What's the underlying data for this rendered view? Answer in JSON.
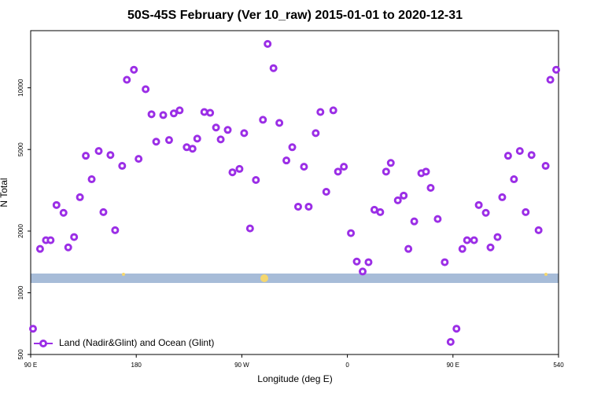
{
  "chart_data": {
    "type": "scatter",
    "log_y": true,
    "title": "50S-45S February (Ver 10_raw)   2015-01-01 to 2020-12-31",
    "xlabel": "Longitude (deg E)",
    "ylabel": "N Total",
    "xlim": [
      90,
      540
    ],
    "ylim": [
      500,
      19000
    ],
    "xticks": [
      {
        "value": 90,
        "label": "90 E"
      },
      180,
      {
        "value": 270,
        "label": "90 W"
      },
      {
        "value": 360,
        "label": "0"
      },
      {
        "value": 450,
        "label": "90 E"
      },
      540
    ],
    "yticks": [
      500,
      1000,
      2000,
      5000,
      10000
    ],
    "legend": "lower left",
    "series": [
      {
        "name": "Land (Nadir&Glint) and Ocean (Glint)",
        "color": "#9b2ee6",
        "x": [
          92,
          98,
          103,
          107,
          112,
          118,
          122,
          127,
          132,
          137,
          142,
          148,
          152,
          158,
          162,
          168,
          172,
          178,
          182,
          188,
          193,
          197,
          203,
          208,
          212,
          217,
          223,
          228,
          232,
          238,
          243,
          248,
          252,
          258,
          262,
          268,
          272,
          277,
          282,
          288,
          292,
          297,
          302,
          308,
          313,
          318,
          323,
          327,
          333,
          337,
          342,
          348,
          352,
          357,
          363,
          368,
          373,
          378,
          383,
          388,
          393,
          397,
          403,
          408,
          412,
          417,
          423,
          427,
          431,
          437,
          443,
          448,
          453,
          458,
          462,
          468,
          472,
          478,
          482,
          488,
          492,
          497,
          502,
          507,
          512,
          517,
          523,
          529,
          533,
          538
        ],
        "values": [
          668,
          1637,
          1805,
          1805,
          2680,
          2455,
          1665,
          1870,
          2925,
          4660,
          3580,
          4915,
          2475,
          4700,
          2020,
          4160,
          10940,
          12250,
          4500,
          9840,
          7430,
          5460,
          7360,
          5560,
          7500,
          7760,
          5130,
          5045,
          5650,
          7620,
          7550,
          6400,
          5600,
          6230,
          3870,
          4020,
          6010,
          2060,
          3550,
          6980,
          16370,
          12470,
          6740,
          4420,
          5130,
          2630,
          4120,
          2630,
          6010,
          7620,
          3110,
          7760,
          3900,
          4120,
          1955,
          1420,
          1270,
          1410,
          2540,
          2475,
          3900,
          4300,
          2825,
          2980,
          1637,
          2230,
          3830,
          3900,
          3250,
          2290,
          1410,
          576,
          668,
          1637,
          1805,
          1805,
          2680,
          2455,
          1665,
          1870,
          2925,
          4660,
          3580,
          4915,
          2475,
          4700,
          2020,
          4160,
          10940,
          12250
        ]
      }
    ]
  }
}
